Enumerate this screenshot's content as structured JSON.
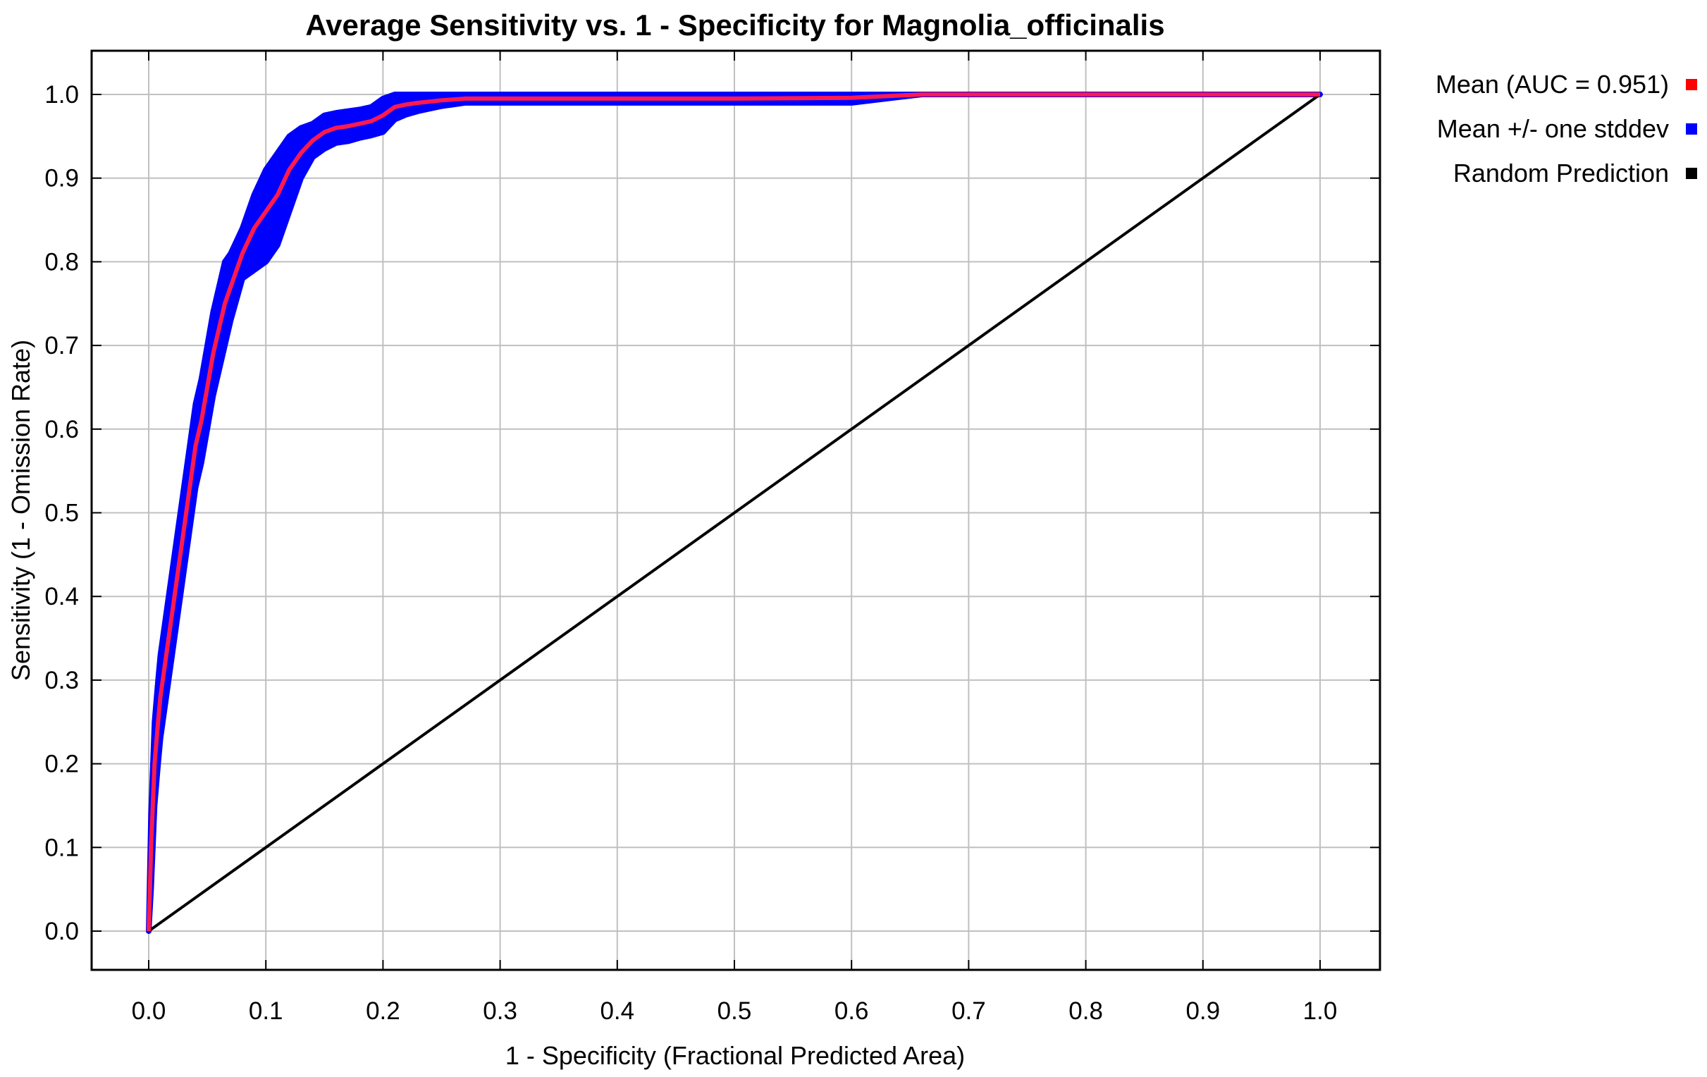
{
  "chart_data": {
    "type": "line",
    "title": "Average Sensitivity vs. 1 - Specificity for Magnolia_officinalis",
    "xlabel": "1 - Specificity (Fractional Predicted Area)",
    "ylabel": "Sensitivity (1 - Omission Rate)",
    "xlim": [
      0.0,
      1.0
    ],
    "ylim": [
      0.0,
      1.0
    ],
    "x_ticks": [
      "0.0",
      "0.1",
      "0.2",
      "0.3",
      "0.4",
      "0.5",
      "0.6",
      "0.7",
      "0.8",
      "0.9",
      "1.0"
    ],
    "y_ticks": [
      "0.0",
      "0.1",
      "0.2",
      "0.3",
      "0.4",
      "0.5",
      "0.6",
      "0.7",
      "0.8",
      "0.9",
      "1.0"
    ],
    "grid": true,
    "legend_position": "right",
    "legend": [
      {
        "label": "Mean (AUC = 0.951)",
        "color": "#ff0000"
      },
      {
        "label": "Mean +/- one stddev",
        "color": "#0000ff"
      },
      {
        "label": "Random Prediction",
        "color": "#000000"
      }
    ],
    "series": [
      {
        "name": "Mean (AUC = 0.951)",
        "color": "#ff1a4d",
        "x": [
          0.0,
          0.002,
          0.005,
          0.008,
          0.01,
          0.015,
          0.02,
          0.025,
          0.03,
          0.035,
          0.04,
          0.045,
          0.05,
          0.055,
          0.06,
          0.065,
          0.07,
          0.08,
          0.09,
          0.1,
          0.11,
          0.12,
          0.13,
          0.14,
          0.15,
          0.16,
          0.17,
          0.18,
          0.19,
          0.2,
          0.21,
          0.22,
          0.23,
          0.25,
          0.27,
          0.3,
          0.4,
          0.5,
          0.6,
          0.66,
          0.7,
          0.8,
          0.9,
          1.0
        ],
        "y": [
          0.0,
          0.1,
          0.2,
          0.25,
          0.28,
          0.33,
          0.38,
          0.43,
          0.48,
          0.53,
          0.58,
          0.61,
          0.65,
          0.69,
          0.72,
          0.75,
          0.77,
          0.81,
          0.84,
          0.86,
          0.88,
          0.91,
          0.93,
          0.945,
          0.955,
          0.96,
          0.962,
          0.965,
          0.968,
          0.975,
          0.985,
          0.988,
          0.99,
          0.993,
          0.995,
          0.995,
          0.995,
          0.995,
          0.996,
          1.0,
          1.0,
          1.0,
          1.0,
          1.0
        ]
      },
      {
        "name": "Mean +/- one stddev",
        "color": "#0000ff",
        "x": [
          0.0,
          0.002,
          0.005,
          0.008,
          0.01,
          0.015,
          0.02,
          0.025,
          0.03,
          0.035,
          0.04,
          0.045,
          0.05,
          0.055,
          0.06,
          0.065,
          0.07,
          0.08,
          0.09,
          0.1,
          0.11,
          0.12,
          0.13,
          0.14,
          0.15,
          0.16,
          0.17,
          0.18,
          0.19,
          0.2,
          0.21,
          0.22,
          0.23,
          0.25,
          0.27,
          0.3,
          0.4,
          0.5,
          0.6,
          0.66,
          0.7,
          0.8,
          0.9,
          1.0
        ],
        "upper": [
          0.0,
          0.14,
          0.25,
          0.3,
          0.33,
          0.38,
          0.43,
          0.48,
          0.53,
          0.58,
          0.63,
          0.66,
          0.7,
          0.74,
          0.77,
          0.8,
          0.81,
          0.84,
          0.88,
          0.91,
          0.93,
          0.95,
          0.96,
          0.965,
          0.975,
          0.978,
          0.98,
          0.982,
          0.985,
          0.995,
          1.0,
          1.0,
          1.0,
          1.0,
          1.0,
          1.0,
          1.0,
          1.0,
          1.0,
          1.0,
          1.0,
          1.0,
          1.0,
          1.0
        ],
        "lower": [
          0.0,
          0.05,
          0.15,
          0.2,
          0.23,
          0.28,
          0.33,
          0.38,
          0.43,
          0.48,
          0.53,
          0.56,
          0.6,
          0.64,
          0.67,
          0.7,
          0.73,
          0.78,
          0.79,
          0.8,
          0.82,
          0.86,
          0.9,
          0.925,
          0.935,
          0.942,
          0.944,
          0.948,
          0.951,
          0.955,
          0.97,
          0.976,
          0.98,
          0.986,
          0.99,
          0.99,
          0.99,
          0.99,
          0.99,
          1.0,
          1.0,
          1.0,
          1.0,
          1.0
        ]
      },
      {
        "name": "Random Prediction",
        "color": "#000000",
        "x": [
          0.0,
          1.0
        ],
        "y": [
          0.0,
          1.0
        ]
      }
    ]
  }
}
